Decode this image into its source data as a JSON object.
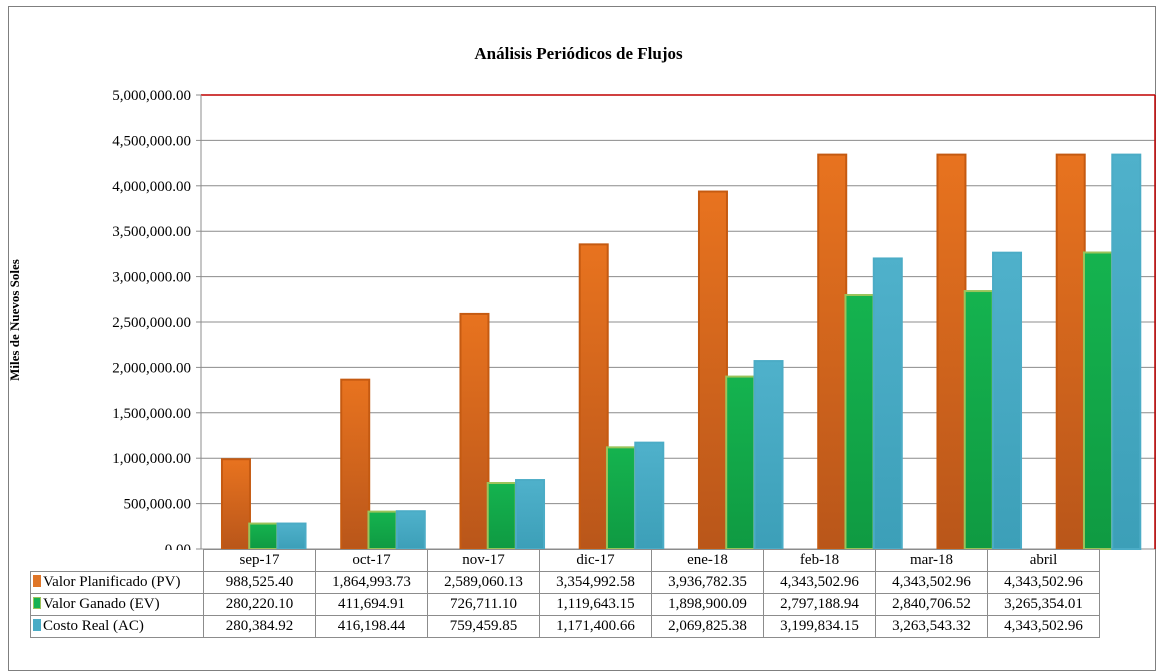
{
  "chart_data": {
    "type": "bar",
    "title": "Análisis Periódicos de Flujos",
    "ylabel": "Miles de Nuevos Soles",
    "xlabel": "",
    "ylim": [
      0,
      5000000
    ],
    "ytick_labels": [
      "0.00",
      "500,000.00",
      "1,000,000.00",
      "1,500,000.00",
      "2,000,000.00",
      "2,500,000.00",
      "3,000,000.00",
      "3,500,000.00",
      "4,000,000.00",
      "4,500,000.00",
      "5,000,000.00"
    ],
    "categories": [
      "sep-17",
      "oct-17",
      "nov-17",
      "dic-17",
      "ene-18",
      "feb-18",
      "mar-18",
      "abril"
    ],
    "grid": true,
    "legend": "data table below chart",
    "series": [
      {
        "name": "Valor Planificado (PV)",
        "color": "#e07628",
        "values": [
          988525.4,
          1864993.73,
          2589060.13,
          3354992.58,
          3936782.35,
          4343502.96,
          4343502.96,
          4343502.96
        ],
        "labels": [
          "988,525.40",
          "1,864,993.73",
          "2,589,060.13",
          "3,354,992.58",
          "3,936,782.35",
          "4,343,502.96",
          "4,343,502.96",
          "4,343,502.96"
        ]
      },
      {
        "name": "Valor Ganado (EV)",
        "color": "#17b152",
        "values": [
          280220.1,
          411694.91,
          726711.1,
          1119643.15,
          1898900.09,
          2797188.94,
          2840706.52,
          3265354.01
        ],
        "labels": [
          "280,220.10",
          "411,694.91",
          "726,711.10",
          "1,119,643.15",
          "1,898,900.09",
          "2,797,188.94",
          "2,840,706.52",
          "3,265,354.01"
        ]
      },
      {
        "name": "Costo Real (AC)",
        "color": "#4bacc6",
        "values": [
          280384.92,
          416198.44,
          759459.85,
          1171400.66,
          2069825.38,
          3199834.15,
          3263543.32,
          4343502.96
        ],
        "labels": [
          "280,384.92",
          "416,198.44",
          "759,459.85",
          "1,171,400.66",
          "2,069,825.38",
          "3,199,834.15",
          "3,263,543.32",
          "4,343,502.96"
        ]
      }
    ]
  }
}
